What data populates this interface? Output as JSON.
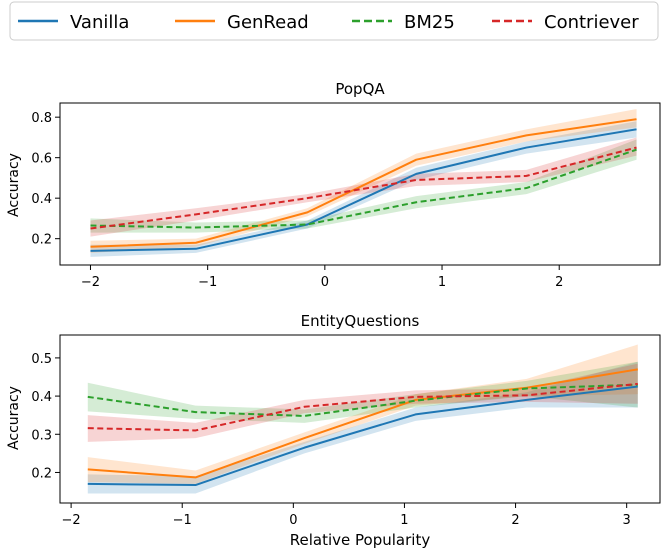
{
  "chart_data": [
    {
      "type": "line",
      "title": "PopQA",
      "xlabel": "",
      "ylabel": "Accuracy",
      "xlim": [
        -2.26,
        2.86
      ],
      "ylim": [
        0.07,
        0.87
      ],
      "xticks": [
        -2,
        -1,
        0,
        1,
        2
      ],
      "xtick_labels": [
        "−2",
        "−1",
        "0",
        "1",
        "2"
      ],
      "yticks": [
        0.2,
        0.4,
        0.6,
        0.8
      ],
      "ytick_labels": [
        "0.2",
        "0.4",
        "0.6",
        "0.8"
      ],
      "x": [
        -2.0,
        -1.1,
        -0.15,
        0.78,
        1.72,
        2.66
      ],
      "series": [
        {
          "name": "Vanilla",
          "color": "#1f77b4",
          "dashed": false,
          "values": [
            0.14,
            0.15,
            0.27,
            0.52,
            0.65,
            0.74
          ],
          "band": [
            [
              0.11,
              0.17
            ],
            [
              0.13,
              0.17
            ],
            [
              0.25,
              0.29
            ],
            [
              0.49,
              0.55
            ],
            [
              0.62,
              0.68
            ],
            [
              0.7,
              0.78
            ]
          ]
        },
        {
          "name": "GenRead",
          "color": "#ff7f0e",
          "dashed": false,
          "values": [
            0.16,
            0.18,
            0.33,
            0.59,
            0.71,
            0.79
          ],
          "band": [
            [
              0.13,
              0.19
            ],
            [
              0.16,
              0.2
            ],
            [
              0.31,
              0.35
            ],
            [
              0.56,
              0.62
            ],
            [
              0.68,
              0.74
            ],
            [
              0.75,
              0.84
            ]
          ]
        },
        {
          "name": "BM25",
          "color": "#2ca02c",
          "dashed": true,
          "values": [
            0.265,
            0.255,
            0.27,
            0.38,
            0.45,
            0.64
          ],
          "band": [
            [
              0.23,
              0.3
            ],
            [
              0.23,
              0.28
            ],
            [
              0.25,
              0.29
            ],
            [
              0.35,
              0.41
            ],
            [
              0.42,
              0.48
            ],
            [
              0.59,
              0.69
            ]
          ]
        },
        {
          "name": "Contriever",
          "color": "#d62728",
          "dashed": true,
          "values": [
            0.25,
            0.32,
            0.4,
            0.49,
            0.51,
            0.65
          ],
          "band": [
            [
              0.21,
              0.29
            ],
            [
              0.29,
              0.35
            ],
            [
              0.38,
              0.42
            ],
            [
              0.46,
              0.52
            ],
            [
              0.48,
              0.54
            ],
            [
              0.61,
              0.7
            ]
          ]
        }
      ]
    },
    {
      "type": "line",
      "title": "EntityQuestions",
      "xlabel": "Relative Popularity",
      "ylabel": "Accuracy",
      "xlim": [
        -2.1,
        3.3
      ],
      "ylim": [
        0.12,
        0.56
      ],
      "xticks": [
        -2,
        -1,
        0,
        1,
        2,
        3
      ],
      "xtick_labels": [
        "−2",
        "−1",
        "0",
        "1",
        "2",
        "3"
      ],
      "yticks": [
        0.2,
        0.3,
        0.4,
        0.5
      ],
      "ytick_labels": [
        "0.2",
        "0.3",
        "0.4",
        "0.5"
      ],
      "x": [
        -1.85,
        -0.88,
        0.1,
        1.1,
        2.1,
        3.1
      ],
      "series": [
        {
          "name": "Vanilla",
          "color": "#1f77b4",
          "dashed": false,
          "values": [
            0.17,
            0.167,
            0.265,
            0.352,
            0.39,
            0.425
          ],
          "band": [
            [
              0.145,
              0.195
            ],
            [
              0.145,
              0.19
            ],
            [
              0.25,
              0.28
            ],
            [
              0.335,
              0.37
            ],
            [
              0.37,
              0.41
            ],
            [
              0.37,
              0.49
            ]
          ]
        },
        {
          "name": "GenRead",
          "color": "#ff7f0e",
          "dashed": false,
          "values": [
            0.208,
            0.187,
            0.29,
            0.39,
            0.422,
            0.47
          ],
          "band": [
            [
              0.175,
              0.24
            ],
            [
              0.17,
              0.205
            ],
            [
              0.275,
              0.305
            ],
            [
              0.375,
              0.405
            ],
            [
              0.4,
              0.445
            ],
            [
              0.405,
              0.535
            ]
          ]
        },
        {
          "name": "BM25",
          "color": "#2ca02c",
          "dashed": true,
          "values": [
            0.398,
            0.358,
            0.348,
            0.388,
            0.42,
            0.43
          ],
          "band": [
            [
              0.36,
              0.435
            ],
            [
              0.34,
              0.375
            ],
            [
              0.33,
              0.365
            ],
            [
              0.37,
              0.405
            ],
            [
              0.4,
              0.44
            ],
            [
              0.37,
              0.49
            ]
          ]
        },
        {
          "name": "Contriever",
          "color": "#d62728",
          "dashed": true,
          "values": [
            0.316,
            0.31,
            0.372,
            0.398,
            0.402,
            0.432
          ],
          "band": [
            [
              0.28,
              0.35
            ],
            [
              0.29,
              0.33
            ],
            [
              0.355,
              0.39
            ],
            [
              0.38,
              0.415
            ],
            [
              0.385,
              0.42
            ],
            [
              0.38,
              0.485
            ]
          ]
        }
      ]
    }
  ],
  "legend": {
    "placement": "top",
    "entries": [
      {
        "label": "Vanilla",
        "color": "#1f77b4",
        "dashed": false
      },
      {
        "label": "GenRead",
        "color": "#ff7f0e",
        "dashed": false
      },
      {
        "label": "BM25",
        "color": "#2ca02c",
        "dashed": true
      },
      {
        "label": "Contriever",
        "color": "#d62728",
        "dashed": true
      }
    ]
  }
}
